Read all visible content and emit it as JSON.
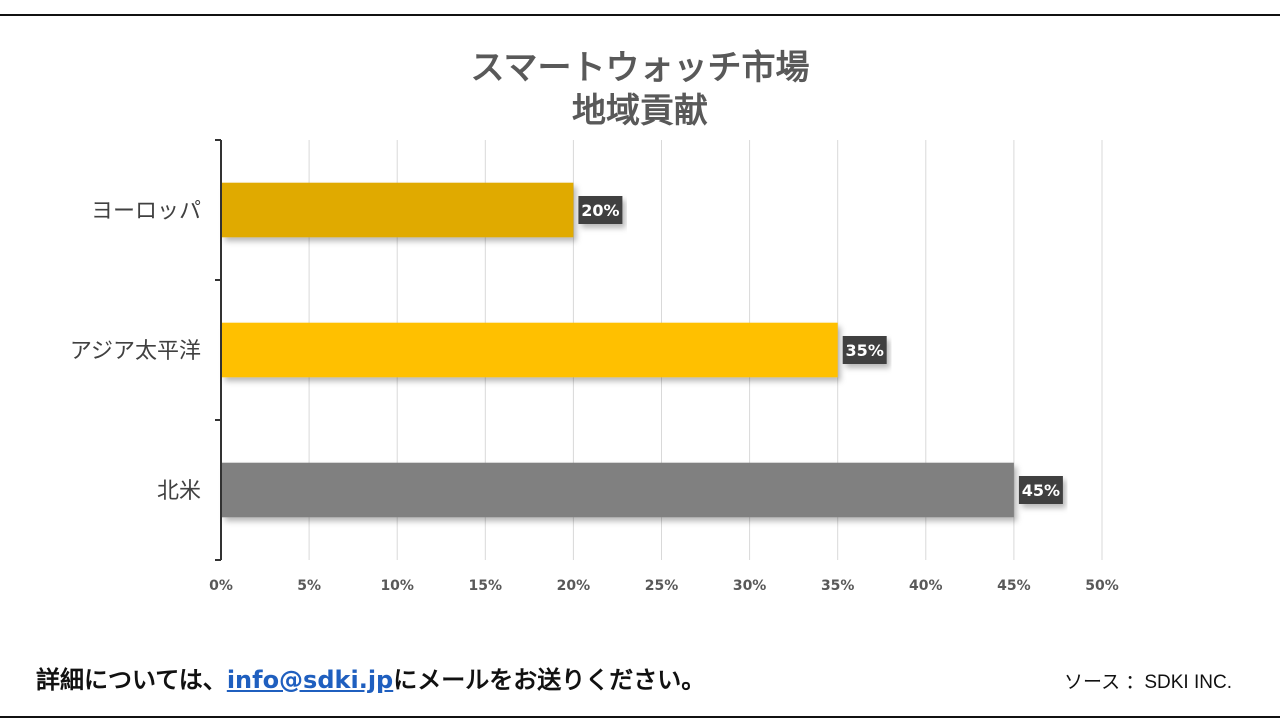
{
  "chart_data": {
    "type": "bar",
    "orientation": "horizontal",
    "title_lines": [
      "スマートウォッチ市場",
      "地域貢献"
    ],
    "categories": [
      "ヨーロッパ",
      "アジア太平洋",
      "北米"
    ],
    "values": [
      20,
      35,
      45
    ],
    "data_labels": [
      "20%",
      "35%",
      "45%"
    ],
    "bar_colors": [
      "#e0aa00",
      "#ffc000",
      "#808080"
    ],
    "xlim": [
      0,
      50
    ],
    "x_ticks": [
      0,
      5,
      10,
      15,
      20,
      25,
      30,
      35,
      40,
      45,
      50
    ],
    "x_tick_labels": [
      "0%",
      "5%",
      "10%",
      "15%",
      "20%",
      "25%",
      "30%",
      "35%",
      "40%",
      "45%",
      "50%"
    ],
    "grid": "vertical",
    "legend": "none"
  },
  "footer": {
    "contact_prefix": "詳細については、",
    "contact_email": "info@sdki.jp",
    "contact_suffix": "にメールをお送りください。",
    "source": "ソース ：SDKI INC."
  }
}
